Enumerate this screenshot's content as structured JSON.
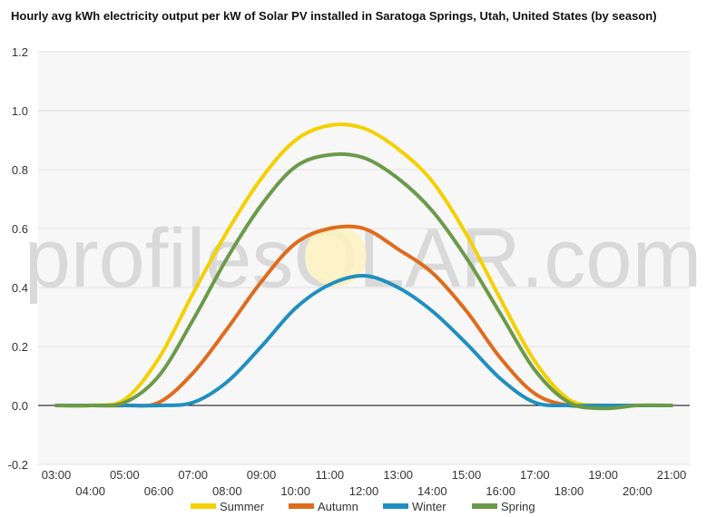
{
  "chart_data": {
    "type": "line",
    "title": "Hourly avg kWh electricity output per kW of Solar PV installed in Saratoga Springs, Utah, United States (by season)",
    "watermark": "profilesOLAR.com",
    "xlabel": "",
    "ylabel": "",
    "ylim": [
      -0.2,
      1.2
    ],
    "yticks": [
      "-0.2",
      "0.0",
      "0.2",
      "0.4",
      "0.6",
      "0.8",
      "1.0",
      "1.2"
    ],
    "xticks": [
      "03:00",
      "04:00",
      "05:00",
      "06:00",
      "07:00",
      "08:00",
      "09:00",
      "10:00",
      "11:00",
      "12:00",
      "13:00",
      "14:00",
      "15:00",
      "16:00",
      "17:00",
      "18:00",
      "19:00",
      "20:00",
      "21:00"
    ],
    "x": [
      "03:00",
      "04:00",
      "05:00",
      "06:00",
      "07:00",
      "08:00",
      "09:00",
      "10:00",
      "11:00",
      "12:00",
      "13:00",
      "14:00",
      "15:00",
      "16:00",
      "17:00",
      "18:00",
      "19:00",
      "20:00",
      "21:00"
    ],
    "grid": true,
    "legend_position": "bottom",
    "series": [
      {
        "name": "Summer",
        "color": "#f5d000",
        "values": [
          0.0,
          0.0,
          0.02,
          0.16,
          0.38,
          0.59,
          0.77,
          0.9,
          0.95,
          0.94,
          0.87,
          0.76,
          0.58,
          0.36,
          0.15,
          0.02,
          0.0,
          0.0,
          0.0
        ]
      },
      {
        "name": "Autumn",
        "color": "#e06b1c",
        "values": [
          0.0,
          0.0,
          0.0,
          0.01,
          0.11,
          0.26,
          0.42,
          0.55,
          0.6,
          0.6,
          0.53,
          0.45,
          0.32,
          0.16,
          0.04,
          0.0,
          0.0,
          0.0,
          0.0
        ]
      },
      {
        "name": "Winter",
        "color": "#1f8fc0",
        "values": [
          0.0,
          0.0,
          0.0,
          0.0,
          0.01,
          0.08,
          0.2,
          0.33,
          0.41,
          0.44,
          0.4,
          0.32,
          0.21,
          0.09,
          0.01,
          0.0,
          0.0,
          0.0,
          0.0
        ]
      },
      {
        "name": "Spring",
        "color": "#6b9a4a",
        "values": [
          0.0,
          0.0,
          0.01,
          0.1,
          0.29,
          0.5,
          0.68,
          0.81,
          0.85,
          0.84,
          0.77,
          0.66,
          0.5,
          0.31,
          0.12,
          0.01,
          -0.01,
          0.0,
          0.0
        ]
      }
    ]
  }
}
